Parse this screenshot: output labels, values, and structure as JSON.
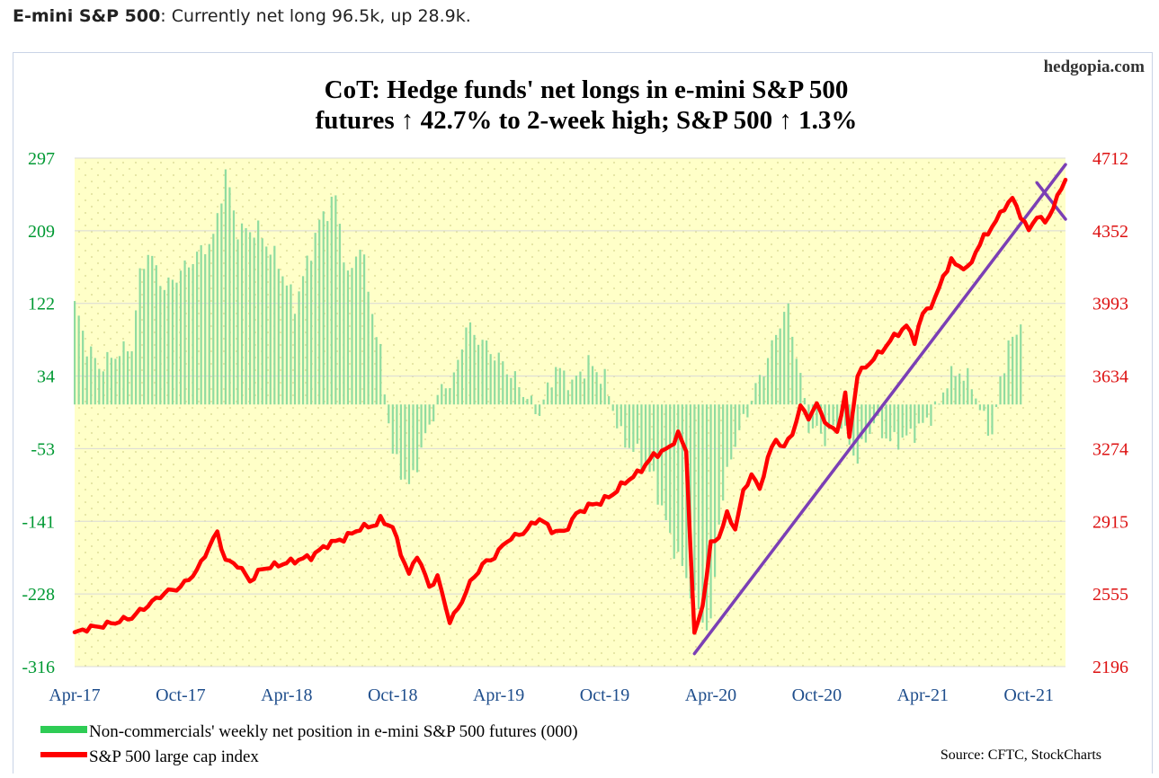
{
  "heading": {
    "bold": "E-mini S&P 500",
    "text": ": Currently net long 96.5k, up 28.9k."
  },
  "chart_data": {
    "type": "bar+line",
    "watermark": "hedgopia.com",
    "title_line1": "CoT: Hedge funds' net longs in e-mini S&P 500",
    "title_line2": "futures ↑ 42.7% to 2-week high; S&P 500 ↑ 1.3%",
    "source": "Source: CFTC, StockCharts",
    "x_ticks": [
      "Apr-17",
      "Oct-17",
      "Apr-18",
      "Oct-18",
      "Apr-19",
      "Oct-19",
      "Apr-20",
      "Oct-20",
      "Apr-21",
      "Oct-21"
    ],
    "y_left_ticks": [
      "297",
      "209",
      "122",
      "34",
      "-53",
      "-141",
      "-228",
      "-316"
    ],
    "y_right_ticks": [
      "4712",
      "4352",
      "3993",
      "3634",
      "3274",
      "2915",
      "2555",
      "2196"
    ],
    "y_left_range": [
      -316,
      297
    ],
    "y_right_range": [
      2196,
      4712
    ],
    "grid": true,
    "legend_position": "bottom-left",
    "colors": {
      "bars": "#8fdca0",
      "line": "#ff0000",
      "trendlines": "#7b3fb5",
      "left_axis_text": "#009933",
      "right_axis_text": "#dd1111",
      "x_axis_text": "#1f4e8c",
      "plot_bg": "#ffffc8"
    },
    "series": [
      {
        "name": "Non-commercials' weekly net position in e-mini S&P 500 futures (000)",
        "axis": "left",
        "kind": "bar",
        "keypoints": [
          [
            0,
            120
          ],
          [
            3,
            70
          ],
          [
            6,
            45
          ],
          [
            10,
            60
          ],
          [
            14,
            70
          ],
          [
            16,
            155
          ],
          [
            18,
            185
          ],
          [
            22,
            140
          ],
          [
            26,
            160
          ],
          [
            30,
            180
          ],
          [
            34,
            200
          ],
          [
            37,
            280
          ],
          [
            40,
            210
          ],
          [
            45,
            210
          ],
          [
            50,
            170
          ],
          [
            54,
            120
          ],
          [
            60,
            220
          ],
          [
            64,
            250
          ],
          [
            67,
            150
          ],
          [
            70,
            195
          ],
          [
            74,
            85
          ],
          [
            75,
            60
          ],
          [
            78,
            -60
          ],
          [
            82,
            -100
          ],
          [
            86,
            -40
          ],
          [
            90,
            20
          ],
          [
            93,
            30
          ],
          [
            96,
            95
          ],
          [
            100,
            75
          ],
          [
            104,
            55
          ],
          [
            108,
            30
          ],
          [
            112,
            0
          ],
          [
            114,
            -10
          ],
          [
            118,
            45
          ],
          [
            122,
            25
          ],
          [
            126,
            50
          ],
          [
            130,
            30
          ],
          [
            134,
            -40
          ],
          [
            138,
            -60
          ],
          [
            142,
            -90
          ],
          [
            146,
            -160
          ],
          [
            150,
            -210
          ],
          [
            154,
            -260
          ],
          [
            156,
            -270
          ],
          [
            158,
            -140
          ],
          [
            161,
            -60
          ],
          [
            164,
            -20
          ],
          [
            167,
            20
          ],
          [
            170,
            55
          ],
          [
            173,
            100
          ],
          [
            175,
            115
          ],
          [
            177,
            60
          ],
          [
            180,
            -25
          ],
          [
            184,
            -40
          ],
          [
            188,
            -20
          ],
          [
            190,
            -50
          ],
          [
            192,
            -65
          ],
          [
            196,
            -20
          ],
          [
            200,
            -45
          ],
          [
            204,
            -40
          ],
          [
            208,
            -25
          ],
          [
            212,
            0
          ],
          [
            214,
            30
          ],
          [
            217,
            40
          ],
          [
            220,
            25
          ],
          [
            223,
            -20
          ],
          [
            225,
            -35
          ],
          [
            227,
            25
          ],
          [
            229,
            75
          ],
          [
            231,
            80
          ],
          [
            232,
            96.5
          ]
        ]
      },
      {
        "name": "S&P 500 large cap index",
        "axis": "right",
        "kind": "line",
        "keypoints": [
          [
            0,
            2360
          ],
          [
            3,
            2385
          ],
          [
            6,
            2395
          ],
          [
            10,
            2415
          ],
          [
            14,
            2440
          ],
          [
            18,
            2500
          ],
          [
            22,
            2560
          ],
          [
            26,
            2590
          ],
          [
            30,
            2670
          ],
          [
            33,
            2790
          ],
          [
            35,
            2860
          ],
          [
            37,
            2720
          ],
          [
            40,
            2700
          ],
          [
            43,
            2620
          ],
          [
            46,
            2680
          ],
          [
            50,
            2700
          ],
          [
            54,
            2720
          ],
          [
            58,
            2740
          ],
          [
            62,
            2800
          ],
          [
            66,
            2830
          ],
          [
            70,
            2880
          ],
          [
            74,
            2900
          ],
          [
            75,
            2925
          ],
          [
            78,
            2885
          ],
          [
            80,
            2760
          ],
          [
            82,
            2650
          ],
          [
            84,
            2750
          ],
          [
            87,
            2590
          ],
          [
            89,
            2640
          ],
          [
            92,
            2420
          ],
          [
            94,
            2480
          ],
          [
            97,
            2610
          ],
          [
            100,
            2700
          ],
          [
            103,
            2740
          ],
          [
            106,
            2820
          ],
          [
            110,
            2860
          ],
          [
            114,
            2930
          ],
          [
            117,
            2870
          ],
          [
            120,
            2860
          ],
          [
            123,
            2950
          ],
          [
            126,
            2990
          ],
          [
            129,
            3010
          ],
          [
            132,
            3050
          ],
          [
            135,
            3110
          ],
          [
            138,
            3150
          ],
          [
            142,
            3240
          ],
          [
            146,
            3280
          ],
          [
            148,
            3350
          ],
          [
            150,
            3260
          ],
          [
            152,
            2350
          ],
          [
            154,
            2500
          ],
          [
            156,
            2800
          ],
          [
            158,
            2840
          ],
          [
            160,
            2950
          ],
          [
            162,
            2880
          ],
          [
            164,
            3060
          ],
          [
            166,
            3150
          ],
          [
            168,
            3070
          ],
          [
            170,
            3230
          ],
          [
            172,
            3320
          ],
          [
            174,
            3280
          ],
          [
            176,
            3350
          ],
          [
            178,
            3480
          ],
          [
            180,
            3430
          ],
          [
            182,
            3490
          ],
          [
            185,
            3380
          ],
          [
            187,
            3360
          ],
          [
            189,
            3540
          ],
          [
            190,
            3330
          ],
          [
            192,
            3640
          ],
          [
            195,
            3700
          ],
          [
            198,
            3760
          ],
          [
            201,
            3830
          ],
          [
            204,
            3880
          ],
          [
            206,
            3810
          ],
          [
            208,
            3940
          ],
          [
            211,
            4010
          ],
          [
            213,
            4130
          ],
          [
            215,
            4200
          ],
          [
            217,
            4180
          ],
          [
            219,
            4160
          ],
          [
            221,
            4250
          ],
          [
            223,
            4320
          ],
          [
            226,
            4400
          ],
          [
            228,
            4470
          ],
          [
            230,
            4510
          ],
          [
            232,
            4430
          ],
          [
            234,
            4350
          ],
          [
            236,
            4430
          ],
          [
            238,
            4390
          ],
          [
            240,
            4470
          ],
          [
            242,
            4560
          ],
          [
            243,
            4605
          ]
        ]
      }
    ],
    "trendlines": [
      {
        "name": "rising support",
        "from": [
          152,
          2260
        ],
        "to": [
          243,
          4680
        ]
      },
      {
        "name": "falling resistance",
        "from": [
          236,
          4590
        ],
        "to": [
          243,
          4410
        ]
      }
    ]
  }
}
